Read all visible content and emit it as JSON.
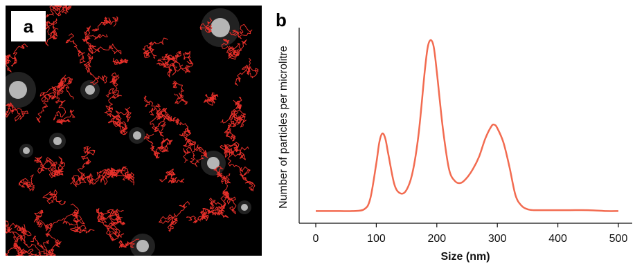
{
  "panel_a": {
    "label": "a"
  },
  "panel_b": {
    "label": "b"
  },
  "chart_data": {
    "type": "line",
    "title": "",
    "xlabel": "Size (nm)",
    "ylabel": "Number of particles per microlitre",
    "xlim": [
      0,
      500
    ],
    "ylim": [
      0,
      1
    ],
    "xticks": [
      0,
      100,
      200,
      300,
      400,
      500
    ],
    "yticks": [],
    "grid": false,
    "series_color": "#f26b50",
    "series": [
      {
        "x": [
          0,
          20,
          40,
          60,
          80,
          90,
          100,
          105,
          110,
          115,
          120,
          130,
          140,
          150,
          160,
          170,
          180,
          185,
          190,
          195,
          200,
          210,
          220,
          230,
          240,
          250,
          260,
          270,
          280,
          290,
          295,
          300,
          310,
          320,
          330,
          340,
          350,
          360,
          380,
          400,
          420,
          450,
          480,
          500
        ],
        "values": [
          0.03,
          0.03,
          0.03,
          0.03,
          0.04,
          0.1,
          0.3,
          0.42,
          0.47,
          0.44,
          0.35,
          0.18,
          0.13,
          0.15,
          0.25,
          0.47,
          0.82,
          0.96,
          1.0,
          0.96,
          0.82,
          0.5,
          0.27,
          0.2,
          0.19,
          0.22,
          0.27,
          0.34,
          0.44,
          0.51,
          0.52,
          0.5,
          0.42,
          0.28,
          0.12,
          0.06,
          0.04,
          0.035,
          0.035,
          0.035,
          0.035,
          0.035,
          0.03,
          0.03
        ]
      }
    ]
  }
}
